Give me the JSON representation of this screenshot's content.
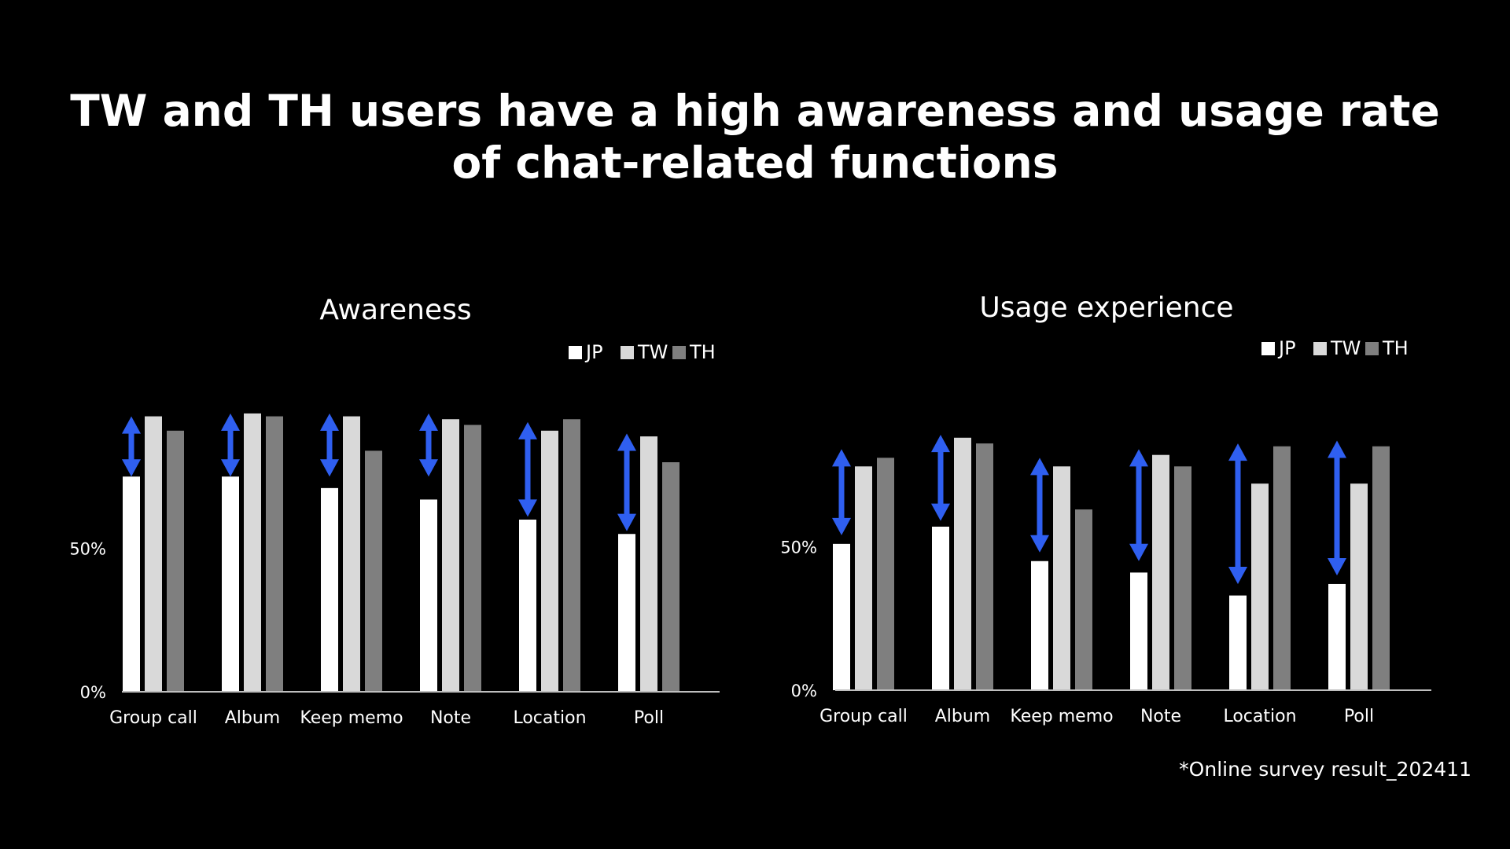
{
  "title": {
    "line1": "TW and TH users have a high awareness and usage rate",
    "line2": "of chat-related functions"
  },
  "footnote": "*Online survey result_202411",
  "colors": {
    "background": "#000000",
    "JP": "#ffffff",
    "TW": "#d9d9d9",
    "TH": "#7f7f7f",
    "gap_arrow": "#2f5ff0",
    "axis": "#bfbfbf"
  },
  "chart_data": [
    {
      "type": "bar",
      "title": "Awareness",
      "categories": [
        "Group call",
        "Album",
        "Keep memo",
        "Note",
        "Location",
        "Poll"
      ],
      "series": [
        {
          "name": "JP",
          "values": [
            75,
            75,
            71,
            67,
            60,
            55
          ]
        },
        {
          "name": "TW",
          "values": [
            96,
            97,
            96,
            95,
            91,
            89
          ]
        },
        {
          "name": "TH",
          "values": [
            91,
            96,
            84,
            93,
            95,
            80
          ]
        }
      ],
      "ylim": [
        0,
        100
      ],
      "ytick_labels": [
        {
          "value": 0,
          "label": "0%"
        },
        {
          "value": 50,
          "label": "50%"
        }
      ],
      "gap_arrows": [
        {
          "category": "Group call",
          "from": 75,
          "to": 96
        },
        {
          "category": "Album",
          "from": 75,
          "to": 97
        },
        {
          "category": "Keep memo",
          "from": 75,
          "to": 97
        },
        {
          "category": "Note",
          "from": 75,
          "to": 97
        },
        {
          "category": "Location",
          "from": 61,
          "to": 94
        },
        {
          "category": "Poll",
          "from": 56,
          "to": 90
        }
      ],
      "legend_placement": "top-right",
      "grid": false
    },
    {
      "type": "bar",
      "title": "Usage experience",
      "categories": [
        "Group call",
        "Album",
        "Keep memo",
        "Note",
        "Location",
        "Poll"
      ],
      "series": [
        {
          "name": "JP",
          "values": [
            51,
            57,
            45,
            41,
            33,
            37
          ]
        },
        {
          "name": "TW",
          "values": [
            78,
            88,
            78,
            82,
            72,
            72
          ]
        },
        {
          "name": "TH",
          "values": [
            81,
            86,
            63,
            78,
            85,
            85
          ]
        }
      ],
      "ylim": [
        0,
        100
      ],
      "ytick_labels": [
        {
          "value": 0,
          "label": "0%"
        },
        {
          "value": 50,
          "label": "50%"
        }
      ],
      "gap_arrows": [
        {
          "category": "Group call",
          "from": 54,
          "to": 84
        },
        {
          "category": "Album",
          "from": 59,
          "to": 89
        },
        {
          "category": "Keep memo",
          "from": 48,
          "to": 81
        },
        {
          "category": "Note",
          "from": 45,
          "to": 84
        },
        {
          "category": "Location",
          "from": 37,
          "to": 86
        },
        {
          "category": "Poll",
          "from": 40,
          "to": 87
        }
      ],
      "legend_placement": "top-right",
      "grid": false
    }
  ]
}
